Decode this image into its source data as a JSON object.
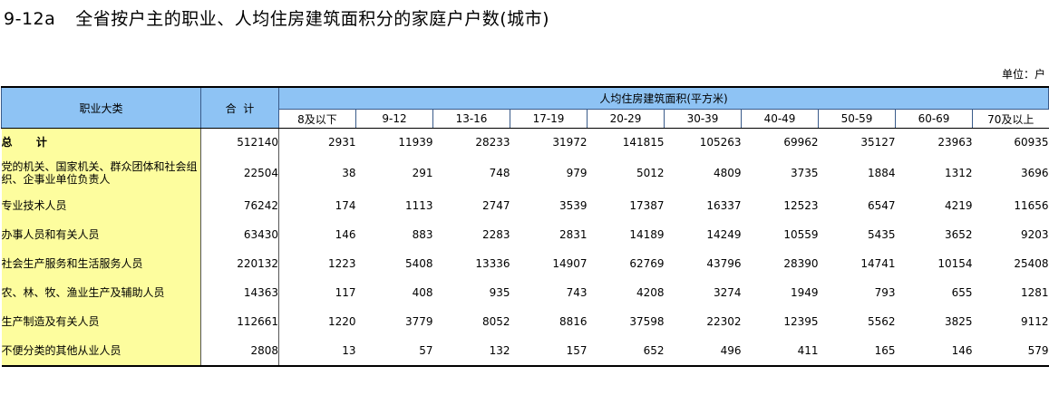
{
  "title": {
    "code": "9-12a",
    "text": "全省按户主的职业、人均住房建筑面积分的家庭户户数(城市)"
  },
  "unit": "单位：户",
  "table": {
    "header_category": "职业大类",
    "header_total": "合  计",
    "header_group": "人均住房建筑面积(平方米)",
    "columns": [
      "8及以下",
      "9-12",
      "13-16",
      "17-19",
      "20-29",
      "30-39",
      "40-49",
      "50-59",
      "60-69",
      "70及以上"
    ],
    "rows": [
      {
        "name": "总  计",
        "total": "512140",
        "values": [
          "2931",
          "11939",
          "28233",
          "31972",
          "141815",
          "105263",
          "69962",
          "35127",
          "23963",
          "60935"
        ]
      },
      {
        "name": "党的机关、国家机关、群众团体和社会组织、企事业单位负责人",
        "total": "22504",
        "values": [
          "38",
          "291",
          "748",
          "979",
          "5012",
          "4809",
          "3735",
          "1884",
          "1312",
          "3696"
        ]
      },
      {
        "name": "专业技术人员",
        "total": "76242",
        "values": [
          "174",
          "1113",
          "2747",
          "3539",
          "17387",
          "16337",
          "12523",
          "6547",
          "4219",
          "11656"
        ]
      },
      {
        "name": "办事人员和有关人员",
        "total": "63430",
        "values": [
          "146",
          "883",
          "2283",
          "2831",
          "14189",
          "14249",
          "10559",
          "5435",
          "3652",
          "9203"
        ]
      },
      {
        "name": "社会生产服务和生活服务人员",
        "total": "220132",
        "values": [
          "1223",
          "5408",
          "13336",
          "14907",
          "62769",
          "43796",
          "28390",
          "14741",
          "10154",
          "25408"
        ]
      },
      {
        "name": "农、林、牧、渔业生产及辅助人员",
        "total": "14363",
        "values": [
          "117",
          "408",
          "935",
          "743",
          "4208",
          "3274",
          "1949",
          "793",
          "655",
          "1281"
        ]
      },
      {
        "name": "生产制造及有关人员",
        "total": "112661",
        "values": [
          "1220",
          "3779",
          "8052",
          "8816",
          "37598",
          "22302",
          "12395",
          "5562",
          "3825",
          "9112"
        ]
      },
      {
        "name": "不便分类的其他从业人员",
        "total": "2808",
        "values": [
          "13",
          "57",
          "132",
          "157",
          "652",
          "496",
          "411",
          "165",
          "146",
          "579"
        ]
      }
    ]
  }
}
